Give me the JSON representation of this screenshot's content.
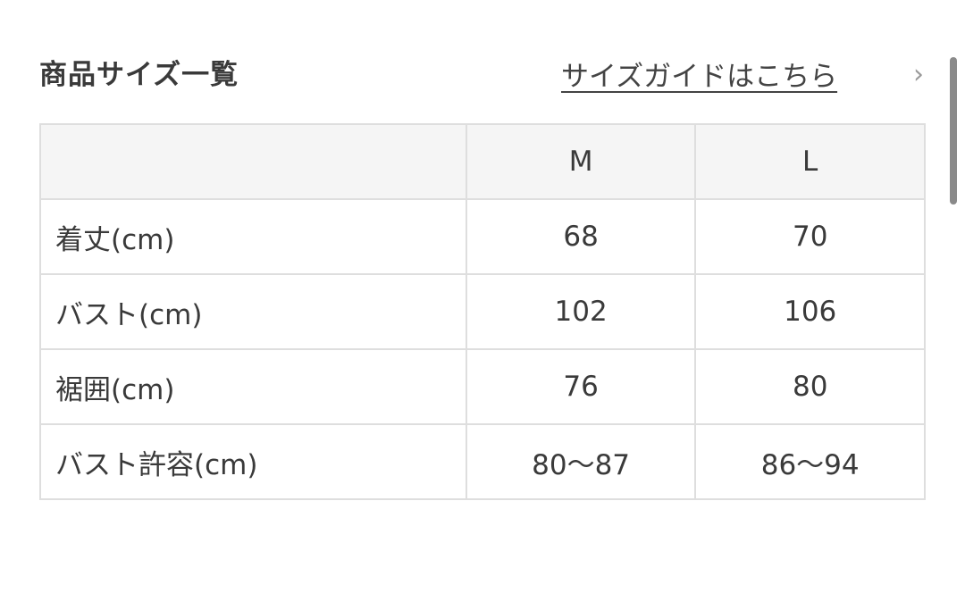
{
  "section_title": "商品サイズ一覧",
  "size_guide_link": "サイズガイドはこちら",
  "chevron_icon": "chevron-right-icon",
  "table": {
    "header": [
      "",
      "M",
      "L"
    ],
    "rows": [
      {
        "label": "着丈(cm)",
        "values": [
          "68",
          "70"
        ]
      },
      {
        "label": "バスト(cm)",
        "values": [
          "102",
          "106"
        ]
      },
      {
        "label": "裾囲(cm)",
        "values": [
          "76",
          "80"
        ]
      },
      {
        "label": "バスト許容(cm)",
        "values": [
          "80〜87",
          "86〜94"
        ]
      }
    ]
  }
}
